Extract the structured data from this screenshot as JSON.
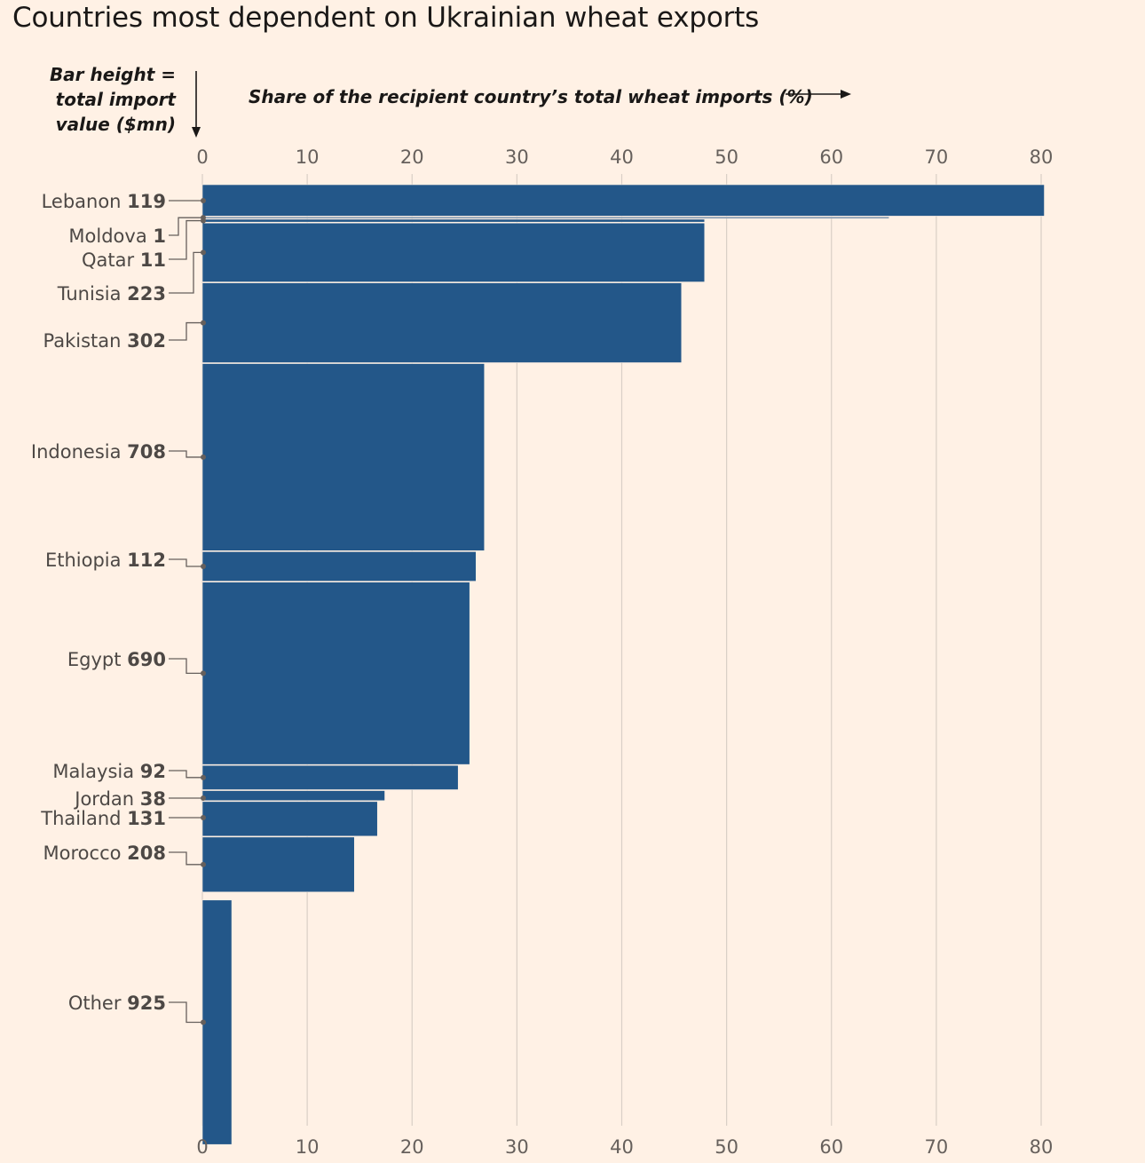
{
  "title": "Countries most dependent on Ukrainian wheat exports",
  "legend": {
    "height_note": [
      "Bar height =",
      "total import",
      "value ($mn)"
    ],
    "x_note": "Share of the recipient country’s total wheat imports (%)"
  },
  "colors": {
    "background": "#fff1e5",
    "bar": "#235789",
    "grid": "#d9cfc6",
    "leader": "#66605c"
  },
  "chart_data": {
    "type": "bar",
    "orientation": "horizontal",
    "variable_width": true,
    "title": "Countries most dependent on Ukrainian wheat exports",
    "xlabel": "Share of the recipient country’s total wheat imports (%)",
    "height_encodes": "total import value ($mn)",
    "xlim": [
      0,
      80
    ],
    "xticks": [
      0,
      10,
      20,
      30,
      40,
      50,
      60,
      70,
      80
    ],
    "grid": true,
    "categories": [
      "Lebanon",
      "Moldova",
      "Qatar",
      "Tunisia",
      "Pakistan",
      "Indonesia",
      "Ethiopia",
      "Egypt",
      "Malaysia",
      "Jordan",
      "Thailand",
      "Morocco",
      "Other"
    ],
    "series": [
      {
        "values": [
          80.3,
          65.5,
          47.9,
          47.9,
          45.7,
          26.9,
          26.1,
          25.5,
          24.4,
          17.4,
          16.7,
          14.5,
          2.8
        ],
        "import_value_mn": [
          119,
          1,
          11,
          223,
          302,
          708,
          112,
          690,
          92,
          38,
          131,
          208,
          925
        ]
      }
    ],
    "labels": [
      "119",
      "1",
      "11",
      "223",
      "302",
      "708",
      "112",
      "690",
      "92",
      "38",
      "131",
      "208",
      "925"
    ]
  }
}
